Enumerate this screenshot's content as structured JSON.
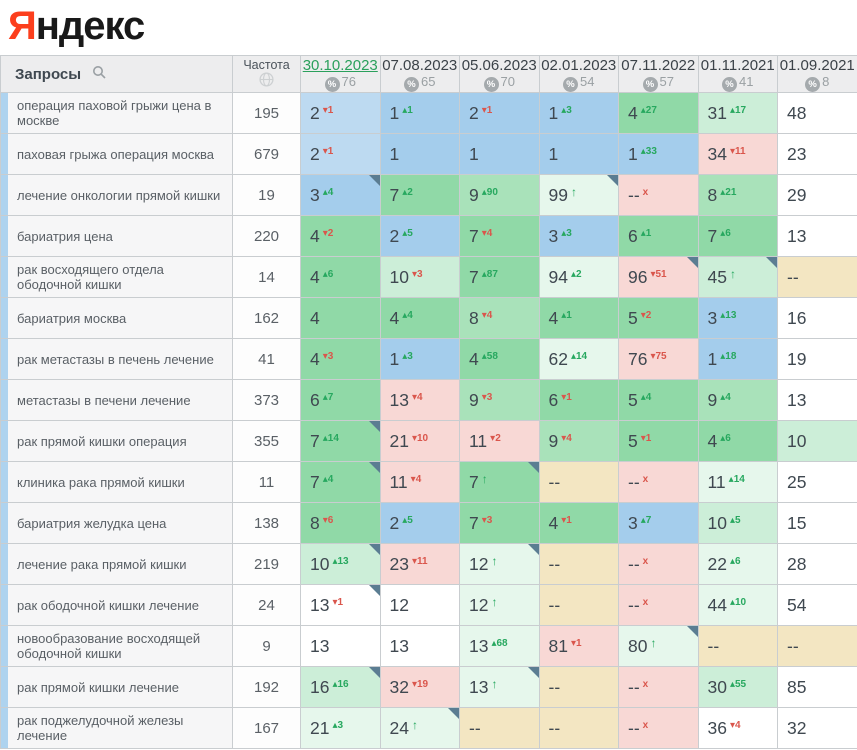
{
  "logo": {
    "first_letter": "Я",
    "rest": "ндекс"
  },
  "header": {
    "queries_label": "Запросы",
    "frequency_label": "Частота"
  },
  "icons": [
    "search-icon",
    "globe-icon",
    "percent-icon"
  ],
  "colors": {
    "brand_red": "#fc3f1d",
    "active_date_green": "#2ba05c",
    "delta_up_green": "#27a85f",
    "delta_down_red": "#da564c",
    "pos_blue": "#a4cdec",
    "pos_blue_light": "#bddaf1",
    "pos_green": "#90d9a7",
    "pos_green_mid": "#a9e2ba",
    "pos_green_light": "#cceed8",
    "pos_green_pale": "#e6f7ec",
    "pos_pink": "#f8d8d5",
    "pos_tan": "#f3e6c2",
    "corner_marker": "#5b7d92",
    "row_strip_blue": "#aed3ef"
  },
  "columns": [
    {
      "date": "30.10.2023",
      "percent": "76",
      "active": true
    },
    {
      "date": "07.08.2023",
      "percent": "65",
      "active": false
    },
    {
      "date": "05.06.2023",
      "percent": "70",
      "active": false
    },
    {
      "date": "02.01.2023",
      "percent": "54",
      "active": false
    },
    {
      "date": "07.11.2022",
      "percent": "57",
      "active": false
    },
    {
      "date": "01.11.2021",
      "percent": "41",
      "active": false
    },
    {
      "date": "01.09.2021",
      "percent": "8",
      "active": false
    }
  ],
  "rows": [
    {
      "query": "операция паховой грыжи цена в москве",
      "frequency": "195",
      "cells": [
        {
          "v": "2",
          "d": "1",
          "dir": "down",
          "bg": "blue2",
          "c": 0
        },
        {
          "v": "1",
          "d": "1",
          "dir": "up",
          "bg": "blue",
          "c": 0
        },
        {
          "v": "2",
          "d": "1",
          "dir": "down",
          "bg": "blue",
          "c": 0
        },
        {
          "v": "1",
          "d": "3",
          "dir": "up",
          "bg": "blue",
          "c": 0
        },
        {
          "v": "4",
          "d": "27",
          "dir": "up",
          "bg": "green",
          "c": 0
        },
        {
          "v": "31",
          "d": "17",
          "dir": "up",
          "bg": "green3",
          "c": 0
        },
        {
          "v": "48",
          "d": "",
          "dir": "none",
          "bg": "white",
          "c": 0
        }
      ]
    },
    {
      "query": "паховая грыжа операция москва",
      "frequency": "679",
      "cells": [
        {
          "v": "2",
          "d": "1",
          "dir": "down",
          "bg": "blue2",
          "c": 0
        },
        {
          "v": "1",
          "d": "",
          "dir": "none",
          "bg": "blue",
          "c": 0
        },
        {
          "v": "1",
          "d": "",
          "dir": "none",
          "bg": "blue",
          "c": 0
        },
        {
          "v": "1",
          "d": "",
          "dir": "none",
          "bg": "blue",
          "c": 0
        },
        {
          "v": "1",
          "d": "33",
          "dir": "up",
          "bg": "blue",
          "c": 0
        },
        {
          "v": "34",
          "d": "11",
          "dir": "down",
          "bg": "pink",
          "c": 0
        },
        {
          "v": "23",
          "d": "",
          "dir": "none",
          "bg": "white",
          "c": 0
        }
      ]
    },
    {
      "query": "лечение онкологии прямой кишки",
      "frequency": "19",
      "cells": [
        {
          "v": "3",
          "d": "4",
          "dir": "up",
          "bg": "blue",
          "c": 1
        },
        {
          "v": "7",
          "d": "2",
          "dir": "up",
          "bg": "green",
          "c": 0
        },
        {
          "v": "9",
          "d": "90",
          "dir": "up",
          "bg": "green2",
          "c": 0
        },
        {
          "v": "99",
          "d": "",
          "dir": "arrow",
          "bg": "green4",
          "c": 1
        },
        {
          "v": "--",
          "d": "",
          "dir": "x",
          "bg": "pink",
          "c": 0
        },
        {
          "v": "8",
          "d": "21",
          "dir": "up",
          "bg": "green2",
          "c": 0
        },
        {
          "v": "29",
          "d": "",
          "dir": "none",
          "bg": "white",
          "c": 0
        }
      ]
    },
    {
      "query": "бариатрия цена",
      "frequency": "220",
      "cells": [
        {
          "v": "4",
          "d": "2",
          "dir": "down",
          "bg": "green",
          "c": 0
        },
        {
          "v": "2",
          "d": "5",
          "dir": "up",
          "bg": "blue",
          "c": 0
        },
        {
          "v": "7",
          "d": "4",
          "dir": "down",
          "bg": "green",
          "c": 0
        },
        {
          "v": "3",
          "d": "3",
          "dir": "up",
          "bg": "blue",
          "c": 0
        },
        {
          "v": "6",
          "d": "1",
          "dir": "up",
          "bg": "green",
          "c": 0
        },
        {
          "v": "7",
          "d": "6",
          "dir": "up",
          "bg": "green",
          "c": 0
        },
        {
          "v": "13",
          "d": "",
          "dir": "none",
          "bg": "white",
          "c": 0
        }
      ]
    },
    {
      "query": "рак восходящего отдела ободочной кишки",
      "frequency": "14",
      "cells": [
        {
          "v": "4",
          "d": "6",
          "dir": "up",
          "bg": "green",
          "c": 0
        },
        {
          "v": "10",
          "d": "3",
          "dir": "down",
          "bg": "green3",
          "c": 0
        },
        {
          "v": "7",
          "d": "87",
          "dir": "up",
          "bg": "green",
          "c": 0
        },
        {
          "v": "94",
          "d": "2",
          "dir": "up",
          "bg": "green4",
          "c": 0
        },
        {
          "v": "96",
          "d": "51",
          "dir": "down",
          "bg": "pink",
          "c": 1
        },
        {
          "v": "45",
          "d": "",
          "dir": "arrow",
          "bg": "green3",
          "c": 1
        },
        {
          "v": "--",
          "d": "",
          "dir": "none",
          "bg": "tan",
          "c": 0
        }
      ]
    },
    {
      "query": "бариатрия москва",
      "frequency": "162",
      "cells": [
        {
          "v": "4",
          "d": "",
          "dir": "none",
          "bg": "green",
          "c": 0
        },
        {
          "v": "4",
          "d": "4",
          "dir": "up",
          "bg": "green",
          "c": 0
        },
        {
          "v": "8",
          "d": "4",
          "dir": "down",
          "bg": "green2",
          "c": 0
        },
        {
          "v": "4",
          "d": "1",
          "dir": "up",
          "bg": "green",
          "c": 0
        },
        {
          "v": "5",
          "d": "2",
          "dir": "down",
          "bg": "green",
          "c": 0
        },
        {
          "v": "3",
          "d": "13",
          "dir": "up",
          "bg": "blue",
          "c": 0
        },
        {
          "v": "16",
          "d": "",
          "dir": "none",
          "bg": "white",
          "c": 0
        }
      ]
    },
    {
      "query": "рак метастазы в печень лечение",
      "frequency": "41",
      "cells": [
        {
          "v": "4",
          "d": "3",
          "dir": "down",
          "bg": "green",
          "c": 0
        },
        {
          "v": "1",
          "d": "3",
          "dir": "up",
          "bg": "blue",
          "c": 0
        },
        {
          "v": "4",
          "d": "58",
          "dir": "up",
          "bg": "green",
          "c": 0
        },
        {
          "v": "62",
          "d": "14",
          "dir": "up",
          "bg": "green4",
          "c": 0
        },
        {
          "v": "76",
          "d": "75",
          "dir": "down",
          "bg": "pink",
          "c": 0
        },
        {
          "v": "1",
          "d": "18",
          "dir": "up",
          "bg": "blue",
          "c": 0
        },
        {
          "v": "19",
          "d": "",
          "dir": "none",
          "bg": "white",
          "c": 0
        }
      ]
    },
    {
      "query": "метастазы в печени лечение",
      "frequency": "373",
      "cells": [
        {
          "v": "6",
          "d": "7",
          "dir": "up",
          "bg": "green",
          "c": 0
        },
        {
          "v": "13",
          "d": "4",
          "dir": "down",
          "bg": "pink",
          "c": 0
        },
        {
          "v": "9",
          "d": "3",
          "dir": "down",
          "bg": "green2",
          "c": 0
        },
        {
          "v": "6",
          "d": "1",
          "dir": "down",
          "bg": "green",
          "c": 0
        },
        {
          "v": "5",
          "d": "4",
          "dir": "up",
          "bg": "green",
          "c": 0
        },
        {
          "v": "9",
          "d": "4",
          "dir": "up",
          "bg": "green2",
          "c": 0
        },
        {
          "v": "13",
          "d": "",
          "dir": "none",
          "bg": "white",
          "c": 0
        }
      ]
    },
    {
      "query": "рак прямой кишки операция",
      "frequency": "355",
      "cells": [
        {
          "v": "7",
          "d": "14",
          "dir": "up",
          "bg": "green",
          "c": 1
        },
        {
          "v": "21",
          "d": "10",
          "dir": "down",
          "bg": "pink",
          "c": 0
        },
        {
          "v": "11",
          "d": "2",
          "dir": "down",
          "bg": "pink",
          "c": 0
        },
        {
          "v": "9",
          "d": "4",
          "dir": "down",
          "bg": "green2",
          "c": 0
        },
        {
          "v": "5",
          "d": "1",
          "dir": "down",
          "bg": "green",
          "c": 0
        },
        {
          "v": "4",
          "d": "6",
          "dir": "up",
          "bg": "green",
          "c": 0
        },
        {
          "v": "10",
          "d": "",
          "dir": "none",
          "bg": "green3",
          "c": 0
        }
      ]
    },
    {
      "query": "клиника рака прямой кишки",
      "frequency": "11",
      "cells": [
        {
          "v": "7",
          "d": "4",
          "dir": "up",
          "bg": "green",
          "c": 1
        },
        {
          "v": "11",
          "d": "4",
          "dir": "down",
          "bg": "pink",
          "c": 0
        },
        {
          "v": "7",
          "d": "",
          "dir": "arrow",
          "bg": "green",
          "c": 1
        },
        {
          "v": "--",
          "d": "",
          "dir": "none",
          "bg": "tan",
          "c": 0
        },
        {
          "v": "--",
          "d": "",
          "dir": "x",
          "bg": "pink",
          "c": 0
        },
        {
          "v": "11",
          "d": "14",
          "dir": "up",
          "bg": "green4",
          "c": 0
        },
        {
          "v": "25",
          "d": "",
          "dir": "none",
          "bg": "white",
          "c": 0
        }
      ]
    },
    {
      "query": "бариатрия желудка цена",
      "frequency": "138",
      "cells": [
        {
          "v": "8",
          "d": "6",
          "dir": "down",
          "bg": "green",
          "c": 0
        },
        {
          "v": "2",
          "d": "5",
          "dir": "up",
          "bg": "blue",
          "c": 0
        },
        {
          "v": "7",
          "d": "3",
          "dir": "down",
          "bg": "green",
          "c": 0
        },
        {
          "v": "4",
          "d": "1",
          "dir": "down",
          "bg": "green",
          "c": 0
        },
        {
          "v": "3",
          "d": "7",
          "dir": "up",
          "bg": "blue",
          "c": 0
        },
        {
          "v": "10",
          "d": "5",
          "dir": "up",
          "bg": "green3",
          "c": 0
        },
        {
          "v": "15",
          "d": "",
          "dir": "none",
          "bg": "white",
          "c": 0
        }
      ]
    },
    {
      "query": "лечение рака прямой кишки",
      "frequency": "219",
      "cells": [
        {
          "v": "10",
          "d": "13",
          "dir": "up",
          "bg": "green3",
          "c": 1
        },
        {
          "v": "23",
          "d": "11",
          "dir": "down",
          "bg": "pink",
          "c": 0
        },
        {
          "v": "12",
          "d": "",
          "dir": "arrow",
          "bg": "green4",
          "c": 1
        },
        {
          "v": "--",
          "d": "",
          "dir": "none",
          "bg": "tan",
          "c": 0
        },
        {
          "v": "--",
          "d": "",
          "dir": "x",
          "bg": "pink",
          "c": 0
        },
        {
          "v": "22",
          "d": "6",
          "dir": "up",
          "bg": "green4",
          "c": 0
        },
        {
          "v": "28",
          "d": "",
          "dir": "none",
          "bg": "white",
          "c": 0
        }
      ]
    },
    {
      "query": "рак ободочной кишки лечение",
      "frequency": "24",
      "cells": [
        {
          "v": "13",
          "d": "1",
          "dir": "down",
          "bg": "white",
          "c": 1
        },
        {
          "v": "12",
          "d": "",
          "dir": "none",
          "bg": "white",
          "c": 0
        },
        {
          "v": "12",
          "d": "",
          "dir": "arrow",
          "bg": "green4",
          "c": 0
        },
        {
          "v": "--",
          "d": "",
          "dir": "none",
          "bg": "tan",
          "c": 0
        },
        {
          "v": "--",
          "d": "",
          "dir": "x",
          "bg": "pink",
          "c": 0
        },
        {
          "v": "44",
          "d": "10",
          "dir": "up",
          "bg": "green4",
          "c": 0
        },
        {
          "v": "54",
          "d": "",
          "dir": "none",
          "bg": "white",
          "c": 0
        }
      ]
    },
    {
      "query": "новообразование восходящей ободочной кишки",
      "frequency": "9",
      "cells": [
        {
          "v": "13",
          "d": "",
          "dir": "none",
          "bg": "white",
          "c": 0
        },
        {
          "v": "13",
          "d": "",
          "dir": "none",
          "bg": "white",
          "c": 0
        },
        {
          "v": "13",
          "d": "68",
          "dir": "up",
          "bg": "green4",
          "c": 0
        },
        {
          "v": "81",
          "d": "1",
          "dir": "down",
          "bg": "pink",
          "c": 0
        },
        {
          "v": "80",
          "d": "",
          "dir": "arrow",
          "bg": "green4",
          "c": 1
        },
        {
          "v": "--",
          "d": "",
          "dir": "none",
          "bg": "tan",
          "c": 0
        },
        {
          "v": "--",
          "d": "",
          "dir": "none",
          "bg": "tan",
          "c": 0
        }
      ]
    },
    {
      "query": "рак прямой кишки лечение",
      "frequency": "192",
      "cells": [
        {
          "v": "16",
          "d": "16",
          "dir": "up",
          "bg": "green3",
          "c": 1
        },
        {
          "v": "32",
          "d": "19",
          "dir": "down",
          "bg": "pink",
          "c": 0
        },
        {
          "v": "13",
          "d": "",
          "dir": "arrow",
          "bg": "green4",
          "c": 1
        },
        {
          "v": "--",
          "d": "",
          "dir": "none",
          "bg": "tan",
          "c": 0
        },
        {
          "v": "--",
          "d": "",
          "dir": "x",
          "bg": "pink",
          "c": 0
        },
        {
          "v": "30",
          "d": "55",
          "dir": "up",
          "bg": "green3",
          "c": 0
        },
        {
          "v": "85",
          "d": "",
          "dir": "none",
          "bg": "white",
          "c": 0
        }
      ]
    },
    {
      "query": "рак поджелудочной железы лечение",
      "frequency": "167",
      "cells": [
        {
          "v": "21",
          "d": "3",
          "dir": "up",
          "bg": "green4",
          "c": 0
        },
        {
          "v": "24",
          "d": "",
          "dir": "arrow",
          "bg": "green4",
          "c": 1
        },
        {
          "v": "--",
          "d": "",
          "dir": "none",
          "bg": "tan",
          "c": 0
        },
        {
          "v": "--",
          "d": "",
          "dir": "none",
          "bg": "tan",
          "c": 0
        },
        {
          "v": "--",
          "d": "",
          "dir": "x",
          "bg": "pink",
          "c": 0
        },
        {
          "v": "36",
          "d": "4",
          "dir": "down",
          "bg": "white",
          "c": 0
        },
        {
          "v": "32",
          "d": "",
          "dir": "none",
          "bg": "white",
          "c": 0
        }
      ]
    }
  ]
}
